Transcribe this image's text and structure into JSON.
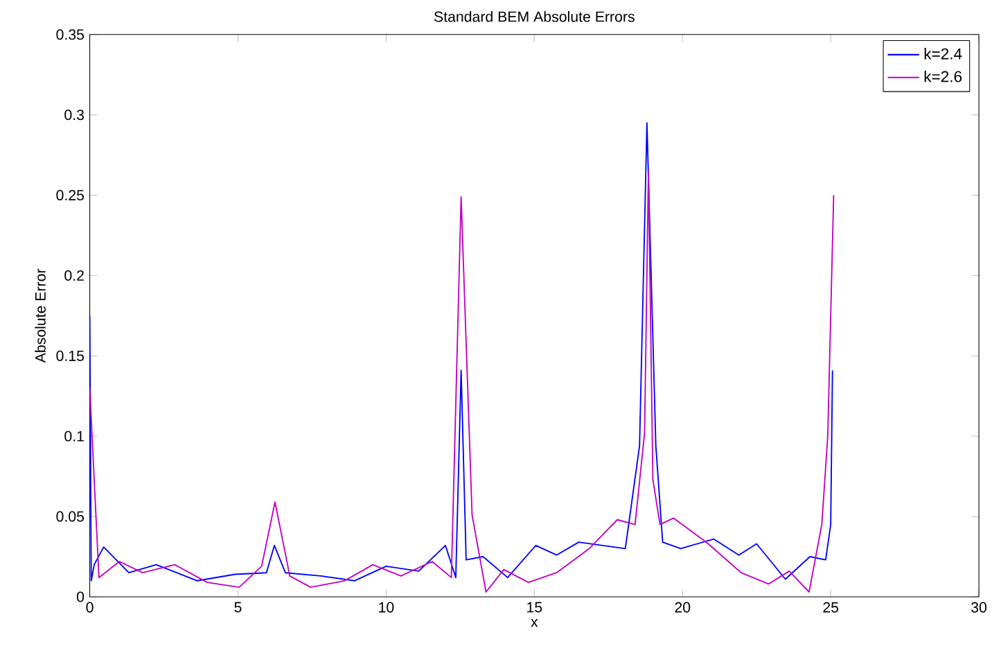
{
  "chart_data": {
    "type": "line",
    "title": "Standard BEM Absolute Errors",
    "xlabel": "x",
    "ylabel": "Absolute Error",
    "xlim": [
      0,
      30
    ],
    "ylim": [
      0,
      0.35
    ],
    "xticks": [
      0,
      5,
      10,
      15,
      20,
      25,
      30
    ],
    "yticks": [
      0,
      0.05,
      0.1,
      0.15,
      0.2,
      0.25,
      0.3,
      0.35
    ],
    "legend": "top right",
    "grid": false,
    "marker": "none",
    "line_style": "solid",
    "series": [
      {
        "name": "k=2.4",
        "color": "#0000ff",
        "x": [
          0,
          0.05,
          0.15,
          0.47,
          1.32,
          2.24,
          3.63,
          4.9,
          5.96,
          6.23,
          6.6,
          7.8,
          8.93,
          10.0,
          11.1,
          12.0,
          12.35,
          12.53,
          12.7,
          13.27,
          14.1,
          15.05,
          15.75,
          16.5,
          17.3,
          18.07,
          18.55,
          18.8,
          19.1,
          19.33,
          19.94,
          21.05,
          21.9,
          22.5,
          23.47,
          24.3,
          24.83,
          25.0,
          25.06
        ],
        "values": [
          0.175,
          0.01,
          0.02,
          0.031,
          0.015,
          0.02,
          0.01,
          0.014,
          0.015,
          0.032,
          0.015,
          0.013,
          0.01,
          0.019,
          0.016,
          0.032,
          0.012,
          0.141,
          0.023,
          0.025,
          0.012,
          0.032,
          0.026,
          0.034,
          0.032,
          0.03,
          0.094,
          0.295,
          0.094,
          0.034,
          0.03,
          0.036,
          0.026,
          0.033,
          0.011,
          0.025,
          0.023,
          0.045,
          0.141
        ]
      },
      {
        "name": "k=2.6",
        "color": "#c000c0",
        "x": [
          0,
          0.31,
          1.0,
          1.78,
          2.87,
          3.96,
          5.04,
          5.8,
          6.25,
          6.75,
          7.45,
          8.6,
          9.55,
          10.5,
          11.55,
          12.2,
          12.53,
          12.9,
          13.37,
          13.97,
          14.8,
          15.75,
          16.85,
          17.8,
          18.4,
          18.72,
          18.85,
          19.0,
          19.24,
          19.7,
          20.87,
          21.98,
          22.9,
          23.6,
          24.27,
          24.7,
          24.9,
          25.1
        ],
        "values": [
          0.13,
          0.012,
          0.022,
          0.015,
          0.02,
          0.009,
          0.006,
          0.019,
          0.059,
          0.013,
          0.006,
          0.01,
          0.02,
          0.013,
          0.022,
          0.012,
          0.249,
          0.051,
          0.003,
          0.017,
          0.009,
          0.015,
          0.03,
          0.048,
          0.045,
          0.102,
          0.265,
          0.073,
          0.045,
          0.049,
          0.033,
          0.015,
          0.008,
          0.016,
          0.003,
          0.045,
          0.1,
          0.25
        ]
      }
    ]
  }
}
